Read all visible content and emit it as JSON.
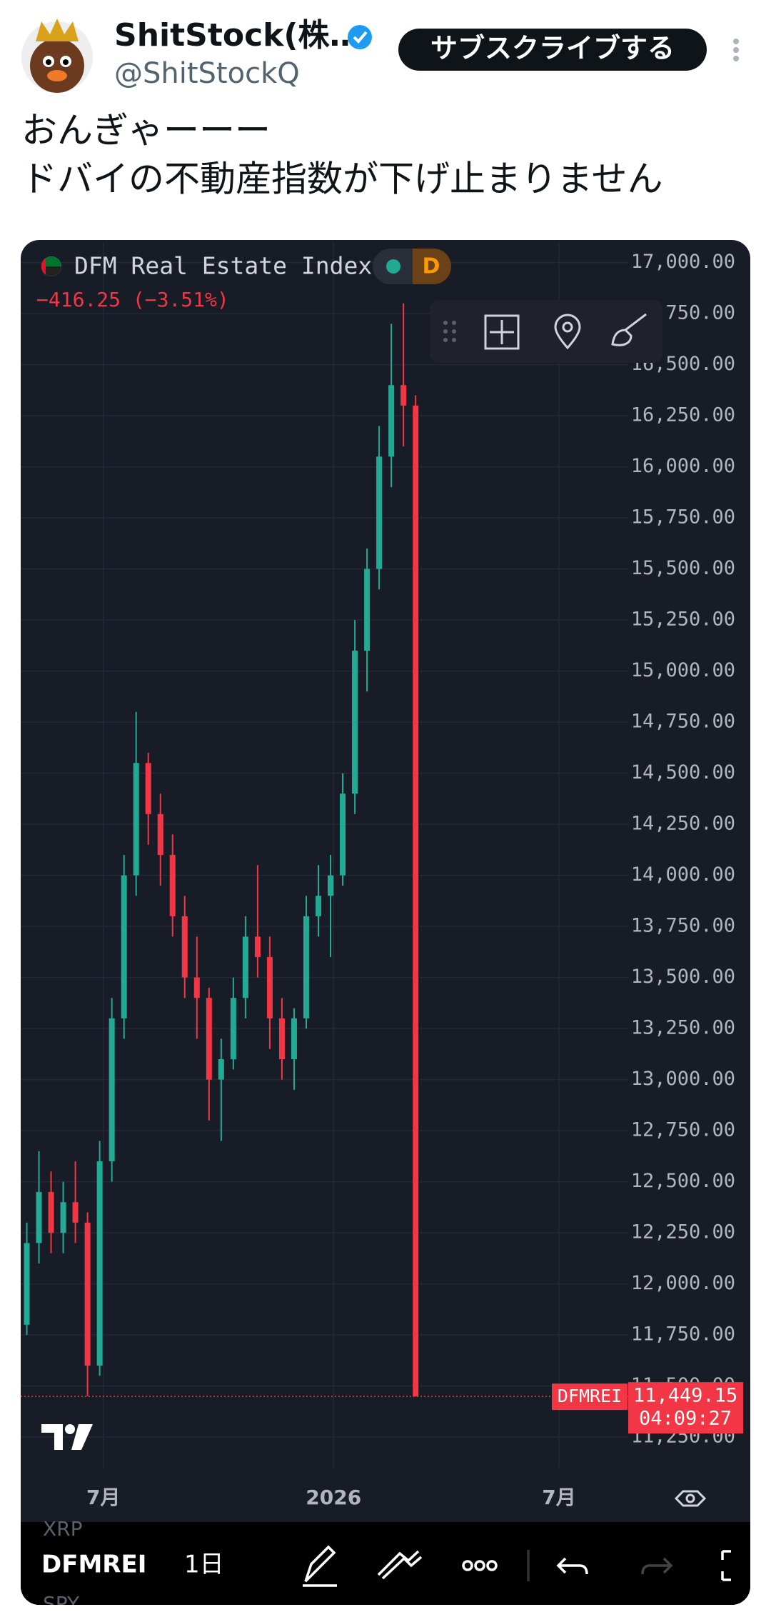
{
  "header": {
    "name": "ShitStock(株…",
    "handle": "@ShitStockQ",
    "subscribe": "サブスクライブする"
  },
  "post": {
    "lines": [
      "おんぎゃーーー",
      "ドバイの不動産指数が下げ止まりません"
    ]
  },
  "chart_data": {
    "type": "candlestick",
    "title": "DFM Real Estate Index",
    "change": "−416.25 (−3.51%)",
    "interval_badge": "D",
    "x": [
      1,
      3,
      5,
      7,
      9,
      11,
      13,
      15,
      17,
      19,
      21,
      23,
      25,
      27,
      29,
      31,
      33,
      35,
      37,
      39,
      41,
      43,
      45,
      47,
      49,
      51,
      53,
      55,
      57,
      59,
      61,
      63,
      65
    ],
    "open": [
      11800,
      12200,
      12450,
      12250,
      12400,
      12300,
      11600,
      12600,
      13300,
      14000,
      14550,
      14300,
      14100,
      13800,
      13500,
      13400,
      13000,
      13100,
      13400,
      13700,
      13600,
      13300,
      13100,
      13300,
      13800,
      13900,
      14000,
      14400,
      15100,
      15500,
      16050,
      16400,
      16300
    ],
    "high": [
      12300,
      12650,
      12550,
      12500,
      12600,
      12350,
      12700,
      13400,
      14100,
      14800,
      14600,
      14400,
      14200,
      13900,
      13700,
      13450,
      13200,
      13500,
      13800,
      14050,
      13700,
      13400,
      13350,
      13900,
      14050,
      14100,
      14500,
      15250,
      15600,
      16200,
      16700,
      16800,
      16350
    ],
    "low": [
      11750,
      12100,
      12150,
      12150,
      12200,
      11450,
      11550,
      12500,
      13200,
      13900,
      14150,
      13950,
      13700,
      13400,
      13200,
      12800,
      12700,
      13050,
      13300,
      13500,
      13150,
      13000,
      12950,
      13250,
      13700,
      13600,
      13950,
      14300,
      14900,
      15400,
      15900,
      16100,
      11449.15
    ],
    "close": [
      12200,
      12450,
      12250,
      12400,
      12300,
      11600,
      12600,
      13300,
      14000,
      14550,
      14300,
      14100,
      13800,
      13500,
      13400,
      13000,
      13100,
      13400,
      13700,
      13600,
      13300,
      13100,
      13300,
      13800,
      13900,
      14000,
      14400,
      15100,
      15500,
      16050,
      16400,
      16300,
      11449.15
    ],
    "up_color": "#22ab94",
    "down_color": "#f23645",
    "xlim": [
      0,
      100
    ],
    "xticks": [
      {
        "value": 13.6,
        "label": "7月"
      },
      {
        "value": 51.5,
        "label": "2026"
      },
      {
        "value": 88.6,
        "label": "7月"
      }
    ],
    "ylim": [
      11100,
      17100
    ],
    "yticks": [
      {
        "value": 11250,
        "label": "11,250.00"
      },
      {
        "value": 11500,
        "label": "11,500.00"
      },
      {
        "value": 11750,
        "label": "11,750.00"
      },
      {
        "value": 12000,
        "label": "12,000.00"
      },
      {
        "value": 12250,
        "label": "12,250.00"
      },
      {
        "value": 12500,
        "label": "12,500.00"
      },
      {
        "value": 12750,
        "label": "12,750.00"
      },
      {
        "value": 13000,
        "label": "13,000.00"
      },
      {
        "value": 13250,
        "label": "13,250.00"
      },
      {
        "value": 13500,
        "label": "13,500.00"
      },
      {
        "value": 13750,
        "label": "13,750.00"
      },
      {
        "value": 14000,
        "label": "14,000.00"
      },
      {
        "value": 14250,
        "label": "14,250.00"
      },
      {
        "value": 14500,
        "label": "14,500.00"
      },
      {
        "value": 14750,
        "label": "14,750.00"
      },
      {
        "value": 15000,
        "label": "15,000.00"
      },
      {
        "value": 15250,
        "label": "15,250.00"
      },
      {
        "value": 15500,
        "label": "15,500.00"
      },
      {
        "value": 15750,
        "label": "15,750.00"
      },
      {
        "value": 16000,
        "label": "16,000.00"
      },
      {
        "value": 16250,
        "label": "16,250.00"
      },
      {
        "value": 16500,
        "label": "16,500.00"
      },
      {
        "value": 16750,
        "label": "16,750.00"
      },
      {
        "value": 17000,
        "label": "17,000.00"
      }
    ],
    "grid": true,
    "last_price": {
      "value": 11449.15,
      "label": "11,449.15"
    },
    "symbol_label": "DFMREI",
    "countdown": "04:09:27"
  },
  "toolbar": {
    "symbol": "DFMREI",
    "interval": "1日",
    "list_above": "XRP",
    "list_below": "SPY"
  }
}
